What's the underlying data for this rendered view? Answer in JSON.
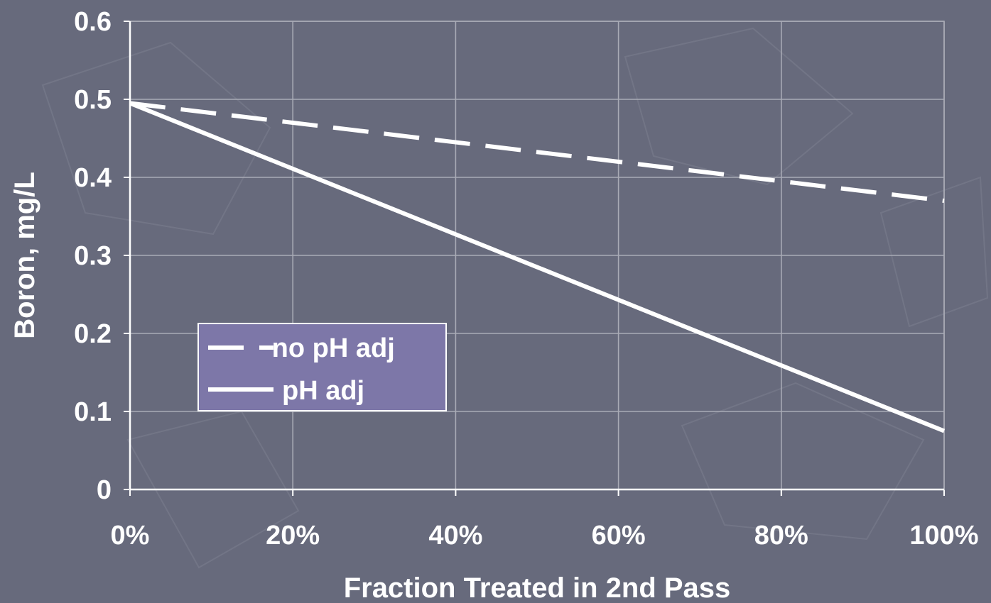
{
  "chart_data": {
    "type": "line",
    "xlabel": "Fraction Treated in 2nd Pass",
    "ylabel": "Boron, mg/L",
    "x": [
      0,
      20,
      40,
      60,
      80,
      100
    ],
    "x_tick_labels": [
      "0%",
      "20%",
      "40%",
      "60%",
      "80%",
      "100%"
    ],
    "y_tick_labels": [
      "0",
      "0.1",
      "0.2",
      "0.3",
      "0.4",
      "0.5",
      "0.6"
    ],
    "xlim": [
      0,
      100
    ],
    "ylim": [
      0,
      0.6
    ],
    "grid": true,
    "legend_position": "lower-left",
    "series": [
      {
        "name": "no pH adj",
        "legend_label": "·no pH adj",
        "style": "dashed",
        "x": [
          0,
          100
        ],
        "y": [
          0.495,
          0.37
        ]
      },
      {
        "name": "pH adj",
        "legend_label": "pH adj",
        "style": "solid",
        "x": [
          0,
          100
        ],
        "y": [
          0.495,
          0.075
        ]
      }
    ],
    "colors": {
      "background": "#676a7c",
      "line": "#ffffff",
      "legend_bg": "#7d77a8",
      "grid": "#a9abb6"
    }
  }
}
